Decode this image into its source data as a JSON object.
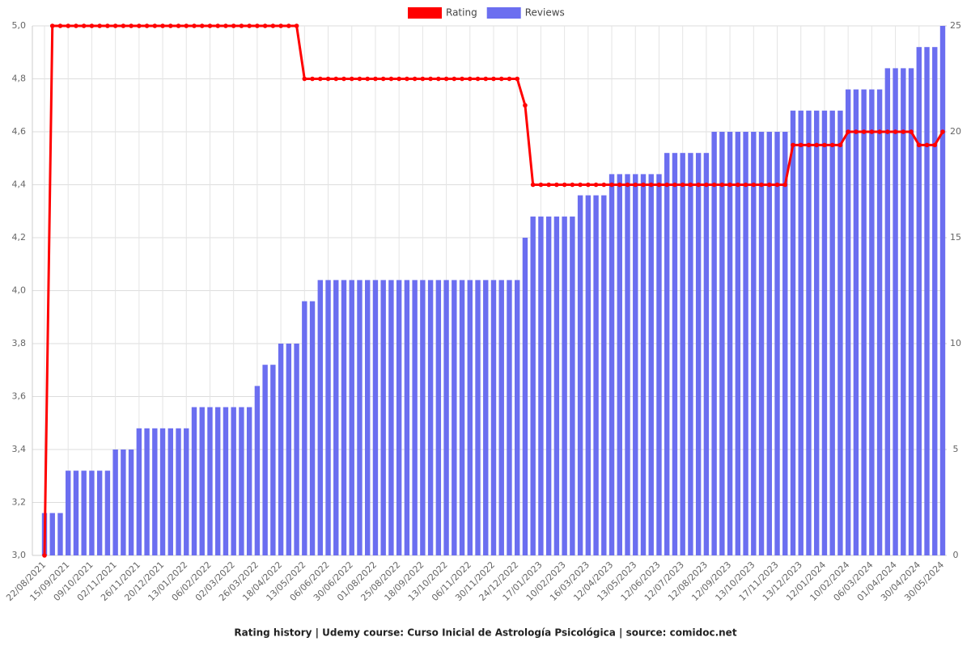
{
  "chart_data": {
    "type": "bar-line",
    "title": "Rating history | Udemy course: Curso Inicial de Astrología Psicológica | source: comidoc.net",
    "categories": [
      "22/08/2021",
      null,
      null,
      "15/09/2021",
      null,
      null,
      "09/10/2021",
      null,
      null,
      "02/11/2021",
      null,
      null,
      "26/11/2021",
      null,
      null,
      "20/12/2021",
      null,
      null,
      "13/01/2022",
      null,
      null,
      "06/02/2022",
      null,
      null,
      "02/03/2022",
      null,
      null,
      "26/03/2022",
      null,
      null,
      "18/04/2022",
      null,
      null,
      "13/05/2022",
      null,
      null,
      "06/06/2022",
      null,
      null,
      "30/06/2022",
      null,
      null,
      "01/08/2022",
      null,
      null,
      "25/08/2022",
      null,
      null,
      "18/09/2022",
      null,
      null,
      "13/10/2022",
      null,
      null,
      "06/11/2022",
      null,
      null,
      "30/11/2022",
      null,
      null,
      "24/12/2022",
      null,
      null,
      "17/01/2023",
      null,
      null,
      "10/02/2023",
      null,
      null,
      "16/03/2023",
      null,
      null,
      "12/04/2023",
      null,
      null,
      "13/05/2023",
      null,
      null,
      "12/06/2023",
      null,
      null,
      "12/07/2023",
      null,
      null,
      "12/08/2023",
      null,
      null,
      "12/09/2023",
      null,
      null,
      "13/10/2023",
      null,
      null,
      "17/11/2023",
      null,
      null,
      "13/12/2023",
      null,
      null,
      "12/01/2024",
      null,
      null,
      "10/02/2024",
      null,
      null,
      "06/03/2024",
      null,
      null,
      "01/04/2024",
      null,
      null,
      "30/04/2024",
      null,
      null,
      "30/05/2024"
    ],
    "series": [
      {
        "name": "Rating",
        "type": "line",
        "color": "#ff0000",
        "axis": "y",
        "values": [
          3,
          5,
          5,
          5,
          5,
          5,
          5,
          5,
          5,
          5,
          5,
          5,
          5,
          5,
          5,
          5,
          5,
          5,
          5,
          5,
          5,
          5,
          5,
          5,
          5,
          5,
          5,
          5,
          5,
          5,
          5,
          5,
          5,
          4.8,
          4.8,
          4.8,
          4.8,
          4.8,
          4.8,
          4.8,
          4.8,
          4.8,
          4.8,
          4.8,
          4.8,
          4.8,
          4.8,
          4.8,
          4.8,
          4.8,
          4.8,
          4.8,
          4.8,
          4.8,
          4.8,
          4.8,
          4.8,
          4.8,
          4.8,
          4.8,
          4.8,
          4.7,
          4.4,
          4.4,
          4.4,
          4.4,
          4.4,
          4.4,
          4.4,
          4.4,
          4.4,
          4.4,
          4.4,
          4.4,
          4.4,
          4.4,
          4.4,
          4.4,
          4.4,
          4.4,
          4.4,
          4.4,
          4.4,
          4.4,
          4.4,
          4.4,
          4.4,
          4.4,
          4.4,
          4.4,
          4.4,
          4.4,
          4.4,
          4.4,
          4.4,
          4.55,
          4.55,
          4.55,
          4.55,
          4.55,
          4.55,
          4.55,
          4.6,
          4.6,
          4.6,
          4.6,
          4.6,
          4.6,
          4.6,
          4.6,
          4.6,
          4.55,
          4.55,
          4.55,
          4.6
        ]
      },
      {
        "name": "Reviews",
        "type": "bar",
        "color": "#6b6ef0",
        "axis": "y2",
        "values": [
          2,
          2,
          2,
          4,
          4,
          4,
          4,
          4,
          4,
          5,
          5,
          5,
          6,
          6,
          6,
          6,
          6,
          6,
          6,
          7,
          7,
          7,
          7,
          7,
          7,
          7,
          7,
          8,
          9,
          9,
          10,
          10,
          10,
          12,
          12,
          13,
          13,
          13,
          13,
          13,
          13,
          13,
          13,
          13,
          13,
          13,
          13,
          13,
          13,
          13,
          13,
          13,
          13,
          13,
          13,
          13,
          13,
          13,
          13,
          13,
          13,
          15,
          16,
          16,
          16,
          16,
          16,
          16,
          17,
          17,
          17,
          17,
          18,
          18,
          18,
          18,
          18,
          18,
          18,
          19,
          19,
          19,
          19,
          19,
          19,
          20,
          20,
          20,
          20,
          20,
          20,
          20,
          20,
          20,
          20,
          21,
          21,
          21,
          21,
          21,
          21,
          21,
          22,
          22,
          22,
          22,
          22,
          23,
          23,
          23,
          23,
          24,
          24,
          24,
          25
        ]
      }
    ],
    "ylim": [
      3,
      5
    ],
    "yticks": [
      {
        "value": 3,
        "label": "3,0"
      },
      {
        "value": 3.2,
        "label": "3,2"
      },
      {
        "value": 3.4,
        "label": "3,4"
      },
      {
        "value": 3.6,
        "label": "3,6"
      },
      {
        "value": 3.8,
        "label": "3,8"
      },
      {
        "value": 4,
        "label": "4,0"
      },
      {
        "value": 4.2,
        "label": "4,2"
      },
      {
        "value": 4.4,
        "label": "4,4"
      },
      {
        "value": 4.6,
        "label": "4,6"
      },
      {
        "value": 4.8,
        "label": "4,8"
      },
      {
        "value": 5,
        "label": "5,0"
      }
    ],
    "y2lim": [
      0,
      25
    ],
    "y2ticks": [
      0,
      5,
      10,
      15,
      20,
      25
    ],
    "grid": true,
    "legend": "top"
  }
}
